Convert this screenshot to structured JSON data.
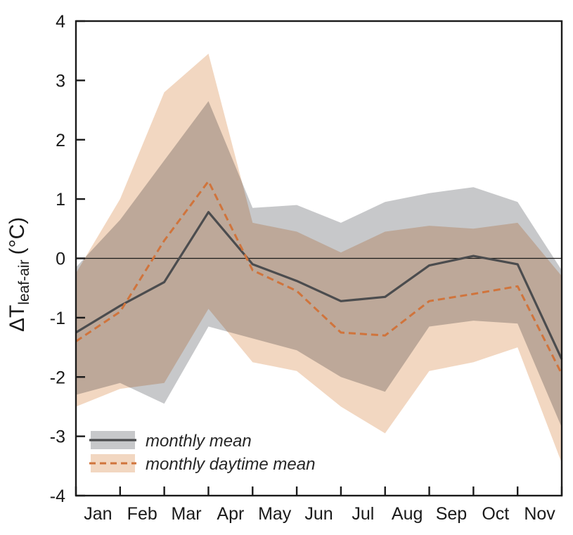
{
  "y_axis": {
    "label_main": "ΔT",
    "label_sub": "leaf-air",
    "label_unit": "(°C)",
    "ticks": [
      4,
      3,
      2,
      1,
      0,
      -1,
      -2,
      -3,
      -4
    ],
    "min": -4,
    "max": 4
  },
  "x_axis": {
    "months": [
      "Jan",
      "Feb",
      "Mar",
      "Apr",
      "May",
      "Jun",
      "Jul",
      "Aug",
      "Sep",
      "Oct",
      "Nov"
    ]
  },
  "legend": {
    "items": [
      {
        "label": "monthly mean"
      },
      {
        "label": "monthly daytime mean"
      }
    ]
  },
  "colors": {
    "axis": "#1a1a1a",
    "zero_line": "#1a1a1a",
    "background": "#ffffff"
  },
  "chart_data": {
    "type": "line",
    "title": "",
    "xlabel": "",
    "ylabel": "ΔT leaf-air (°C)",
    "ylim": [
      -4,
      4
    ],
    "grid": false,
    "legend_position": "lower-left",
    "note": "12 points spanning Jan through Nov at equal spacing; shaded envelopes around each line",
    "categories": [
      "Jan",
      "Feb",
      "Mar",
      "Apr",
      "May",
      "Jun",
      "Jul",
      "Aug",
      "Sep",
      "Oct",
      "Nov"
    ],
    "series": [
      {
        "name": "monthly mean",
        "style": "solid",
        "color": "#4b4c4e",
        "band_color": "#c7c8ca",
        "values": [
          -1.25,
          -0.8,
          -0.4,
          0.78,
          -0.1,
          -0.38,
          -0.72,
          -0.65,
          -0.12,
          0.04,
          -0.1,
          -1.7
        ],
        "band_upper": [
          -0.15,
          0.65,
          1.65,
          2.65,
          0.85,
          0.9,
          0.6,
          0.95,
          1.1,
          1.2,
          0.95,
          -0.2
        ],
        "band_lower": [
          -2.3,
          -2.1,
          -2.45,
          -1.15,
          -1.35,
          -1.55,
          -2.0,
          -2.25,
          -1.15,
          -1.05,
          -1.1,
          -2.85
        ]
      },
      {
        "name": "monthly daytime mean",
        "style": "dashed",
        "color": "#d0743c",
        "band_color": "#f2d7c1",
        "values": [
          -1.4,
          -0.9,
          0.3,
          1.3,
          -0.2,
          -0.55,
          -1.25,
          -1.3,
          -0.72,
          -0.6,
          -0.47,
          -1.95
        ],
        "band_upper": [
          -0.25,
          1.0,
          2.8,
          3.45,
          0.6,
          0.45,
          0.1,
          0.45,
          0.55,
          0.5,
          0.6,
          -0.3
        ],
        "band_lower": [
          -2.5,
          -2.2,
          -2.1,
          -0.85,
          -1.75,
          -1.9,
          -2.5,
          -2.95,
          -1.9,
          -1.75,
          -1.5,
          -3.45
        ]
      }
    ]
  }
}
